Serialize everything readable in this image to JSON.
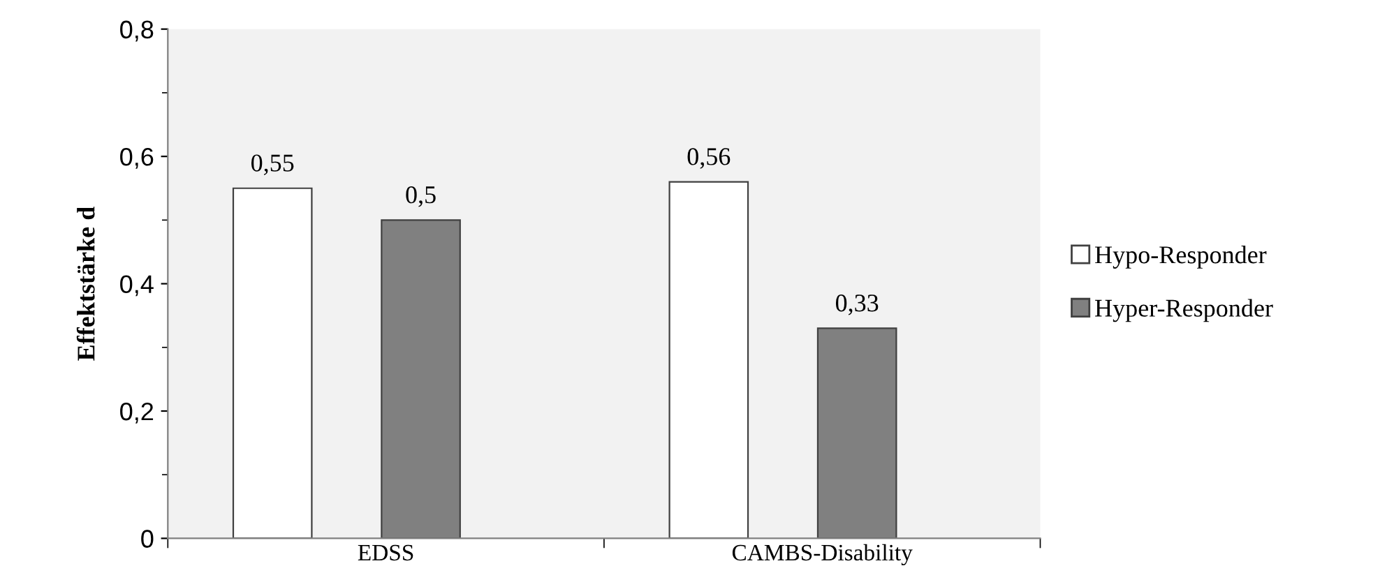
{
  "chart_data": {
    "type": "bar",
    "ylabel": "Effektstärke d",
    "categories": [
      "EDSS",
      "CAMBS-Disability"
    ],
    "series": [
      {
        "name": "Hypo-Responder",
        "color": "#ffffff",
        "values": [
          0.55,
          0.56
        ],
        "value_labels": [
          "0,55",
          "0,56"
        ]
      },
      {
        "name": "Hyper-Responder",
        "color": "#808080",
        "values": [
          0.5,
          0.33
        ],
        "value_labels": [
          "0,5",
          "0,33"
        ]
      }
    ],
    "ylim": [
      0,
      0.8
    ],
    "yticks": [
      0,
      {
        "value": 0.2,
        "label": "0,2"
      },
      {
        "value": 0.4,
        "label": "0,4"
      },
      {
        "value": 0.6,
        "label": "0,6"
      },
      {
        "value": 0.8,
        "label": "0,8"
      }
    ],
    "grid": false,
    "legend": "right"
  }
}
